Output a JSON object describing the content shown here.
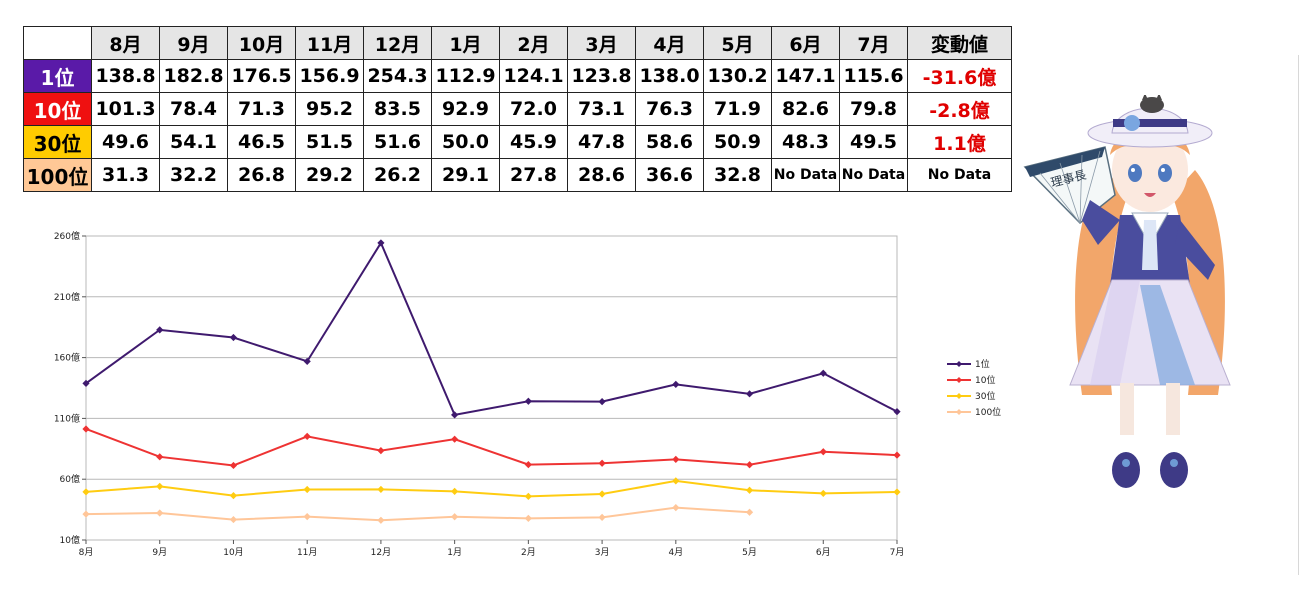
{
  "table": {
    "months": [
      "8月",
      "9月",
      "10月",
      "11月",
      "12月",
      "1月",
      "2月",
      "3月",
      "4月",
      "5月",
      "6月",
      "7月"
    ],
    "change_header": "変動値",
    "rows": [
      {
        "rank": "1位",
        "values": [
          "138.8",
          "182.8",
          "176.5",
          "156.9",
          "254.3",
          "112.9",
          "124.1",
          "123.8",
          "138.0",
          "130.2",
          "147.1",
          "115.6"
        ],
        "change": "-31.6億"
      },
      {
        "rank": "10位",
        "values": [
          "101.3",
          "78.4",
          "71.3",
          "95.2",
          "83.5",
          "92.9",
          "72.0",
          "73.1",
          "76.3",
          "71.9",
          "82.6",
          "79.8"
        ],
        "change": "-2.8億"
      },
      {
        "rank": "30位",
        "values": [
          "49.6",
          "54.1",
          "46.5",
          "51.5",
          "51.6",
          "50.0",
          "45.9",
          "47.8",
          "58.6",
          "50.9",
          "48.3",
          "49.5"
        ],
        "change": "1.1億"
      },
      {
        "rank": "100位",
        "values": [
          "31.3",
          "32.2",
          "26.8",
          "29.2",
          "26.2",
          "29.1",
          "27.8",
          "28.6",
          "36.6",
          "32.8",
          "No Data",
          "No Data"
        ],
        "change": "No Data"
      }
    ]
  },
  "chart_data": {
    "type": "line",
    "categories": [
      "8月",
      "9月",
      "10月",
      "11月",
      "12月",
      "1月",
      "2月",
      "3月",
      "4月",
      "5月",
      "6月",
      "7月"
    ],
    "series": [
      {
        "name": "1位",
        "color": "#3f1a6e",
        "values": [
          138.8,
          182.8,
          176.5,
          156.9,
          254.3,
          112.9,
          124.1,
          123.8,
          138.0,
          130.2,
          147.1,
          115.6
        ]
      },
      {
        "name": "10位",
        "color": "#ee3333",
        "values": [
          101.3,
          78.4,
          71.3,
          95.2,
          83.5,
          92.9,
          72.0,
          73.1,
          76.3,
          71.9,
          82.6,
          79.8
        ]
      },
      {
        "name": "30位",
        "color": "#ffcc11",
        "values": [
          49.6,
          54.1,
          46.5,
          51.5,
          51.6,
          50.0,
          45.9,
          47.8,
          58.6,
          50.9,
          48.3,
          49.5
        ]
      },
      {
        "name": "100位",
        "color": "#ffc699",
        "values": [
          31.3,
          32.2,
          26.8,
          29.2,
          26.2,
          29.1,
          27.8,
          28.6,
          36.6,
          32.8,
          null,
          null
        ]
      }
    ],
    "y_ticks": [
      "10億",
      "60億",
      "110億",
      "160億",
      "210億",
      "260億"
    ],
    "ylim": [
      10,
      260
    ],
    "grid": true,
    "legend": "right"
  },
  "mascot": {
    "fan_text": "理事長",
    "colors": {
      "hair": "#f2a66a",
      "dress": "#4a4d9e",
      "skirt": "#e9e2f4",
      "stripe": "#8aaee0",
      "hat": "#f1eef8"
    }
  }
}
